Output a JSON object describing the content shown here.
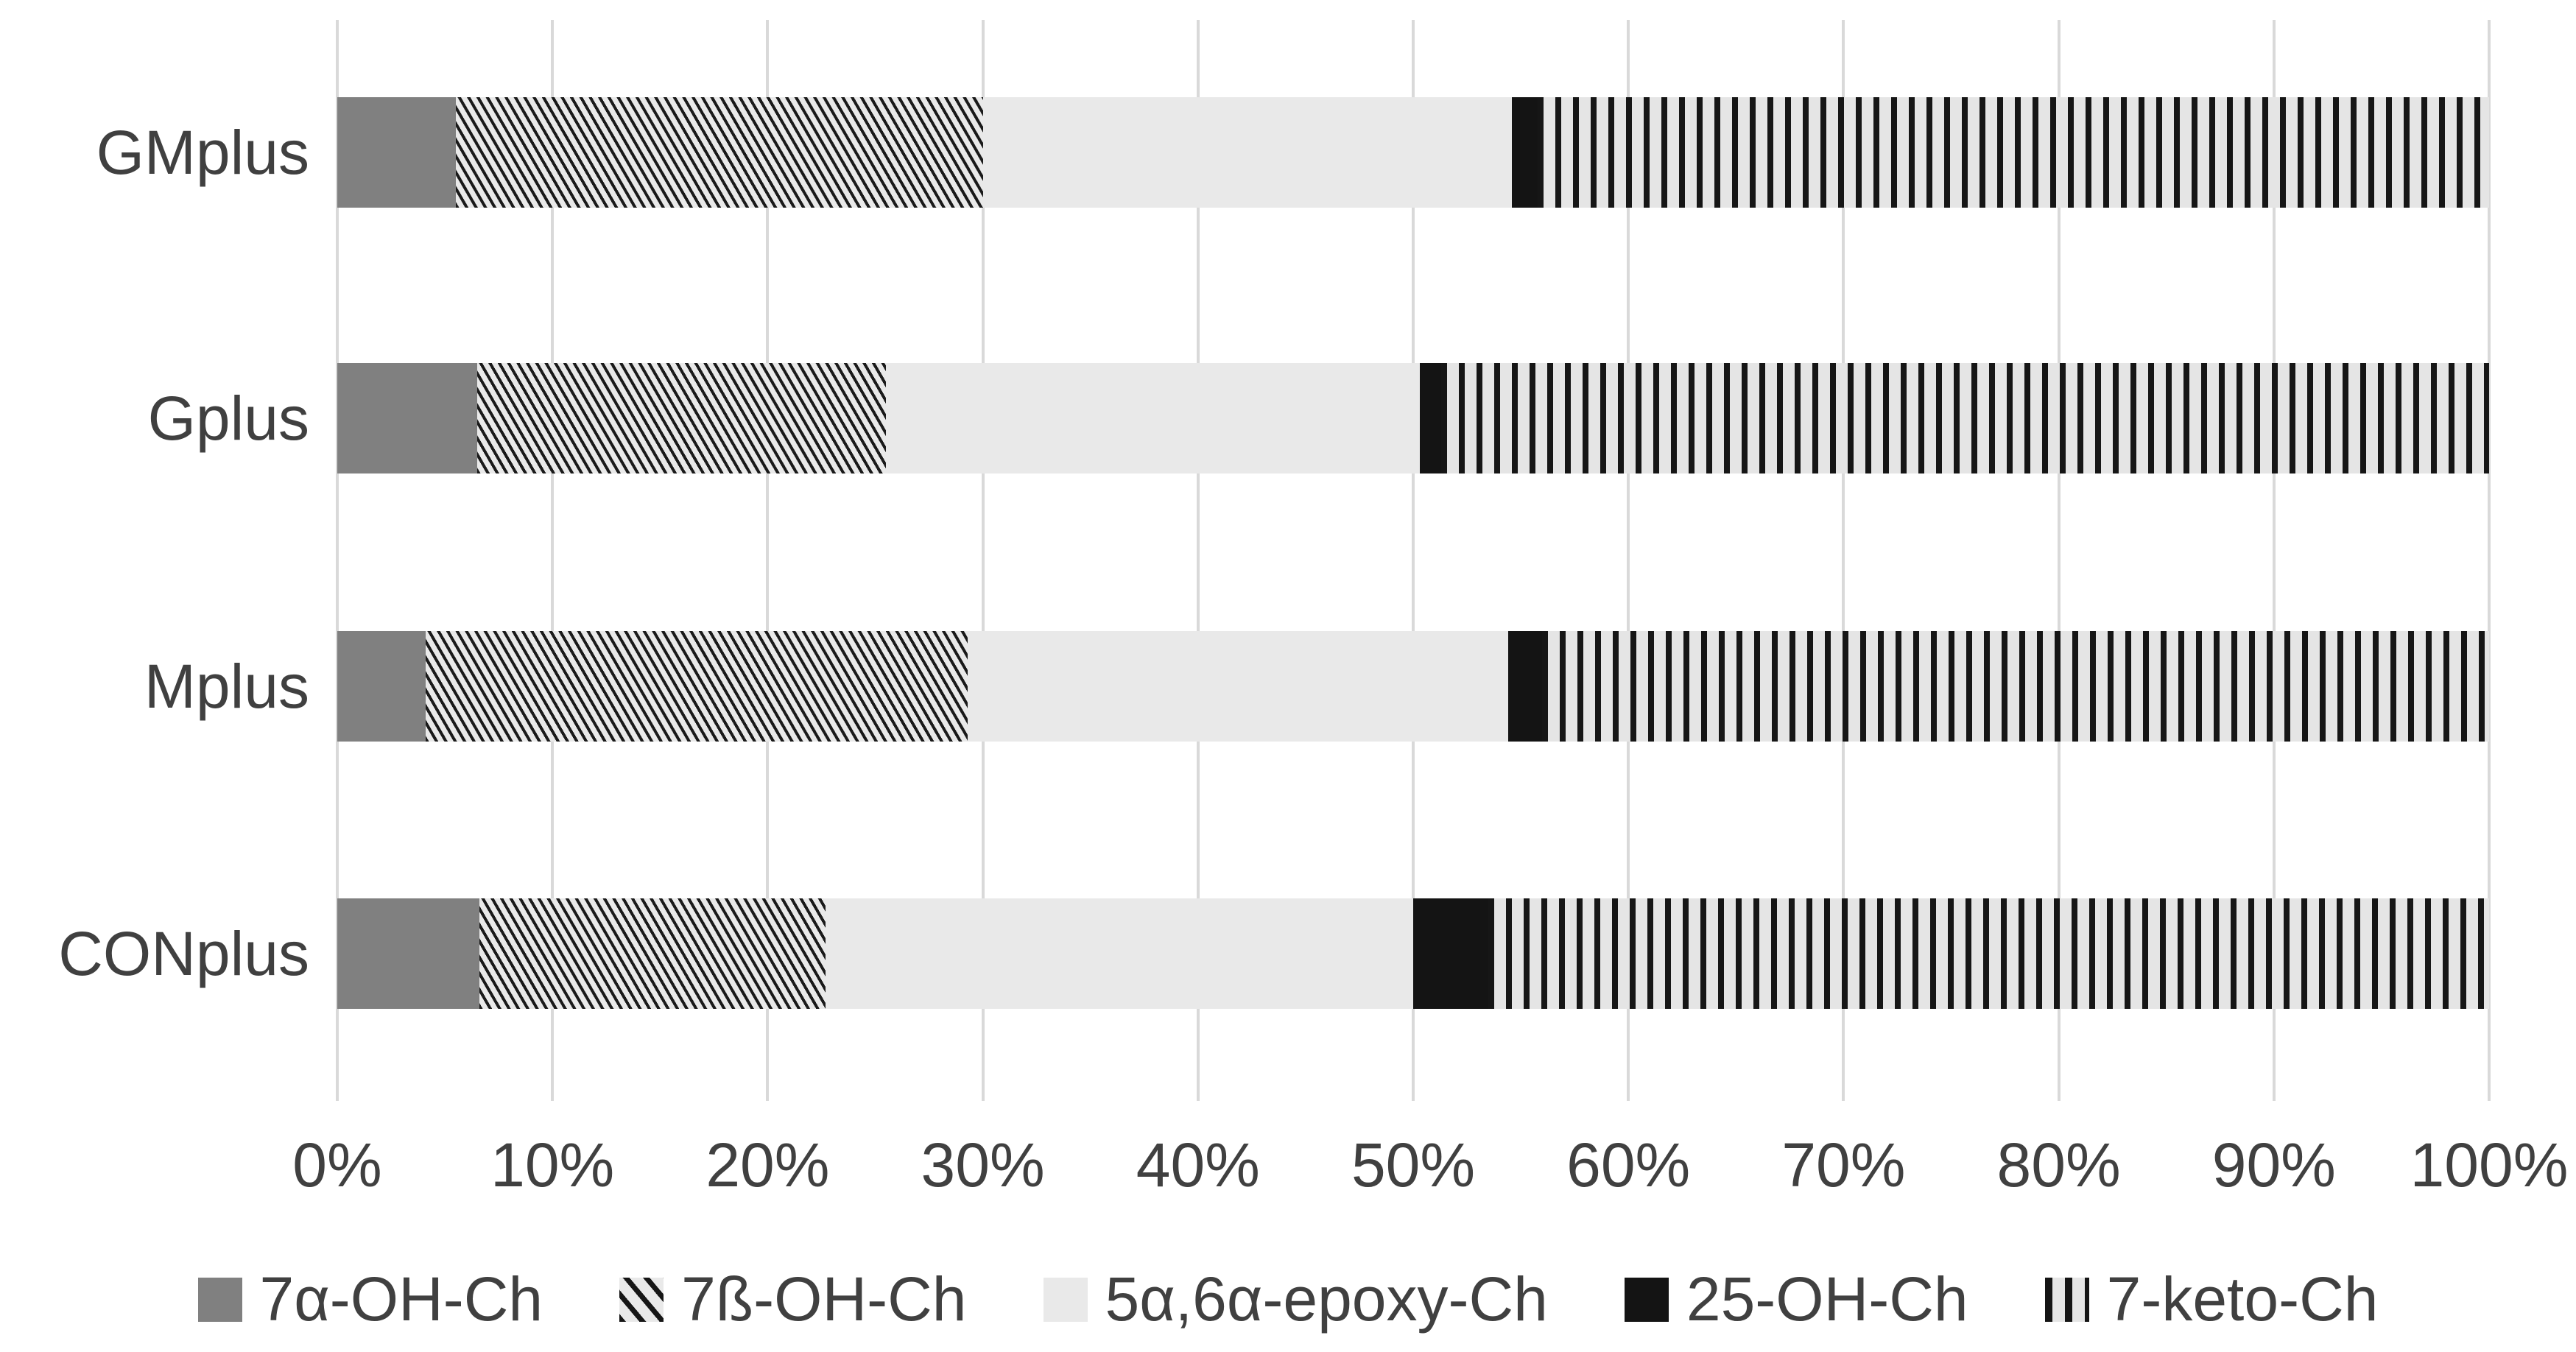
{
  "chart_data": {
    "type": "bar",
    "orientation": "horizontal",
    "stacked": true,
    "stacked_to_100_percent": true,
    "title": "",
    "xlabel": "",
    "ylabel": "",
    "xlim": [
      0,
      100
    ],
    "grid": "vertical",
    "legend_position": "bottom",
    "categories": [
      "GMplus",
      "Gplus",
      "Mplus",
      "CONplus"
    ],
    "x_tick_labels": [
      "0%",
      "10%",
      "20%",
      "30%",
      "40%",
      "50%",
      "60%",
      "70%",
      "80%",
      "90%",
      "100%"
    ],
    "series": [
      {
        "name": "7α-OH-Ch",
        "pattern": "solid-darkgray",
        "color": "#808080",
        "values": [
          5.5,
          6.5,
          4.1,
          6.6
        ]
      },
      {
        "name": "7ß-OH-Ch",
        "pattern": "diagonal-hatch",
        "color": "#1a1a1a",
        "values": [
          24.5,
          19.0,
          25.2,
          16.1
        ]
      },
      {
        "name": "5α,6α-epoxy-Ch",
        "pattern": "solid-lightgray",
        "color": "#e9e9e9",
        "values": [
          24.6,
          24.8,
          25.1,
          27.3
        ]
      },
      {
        "name": "25-OH-Ch",
        "pattern": "solid-black",
        "color": "#141414",
        "values": [
          1.2,
          1.0,
          1.6,
          3.5
        ]
      },
      {
        "name": "7-keto-Ch",
        "pattern": "vertical-stripes",
        "color": "#161616",
        "values": [
          44.2,
          48.7,
          44.0,
          46.5
        ]
      }
    ],
    "colors": {
      "background": "#ffffff",
      "gridline": "#d9d9d9",
      "text": "#404040"
    }
  }
}
